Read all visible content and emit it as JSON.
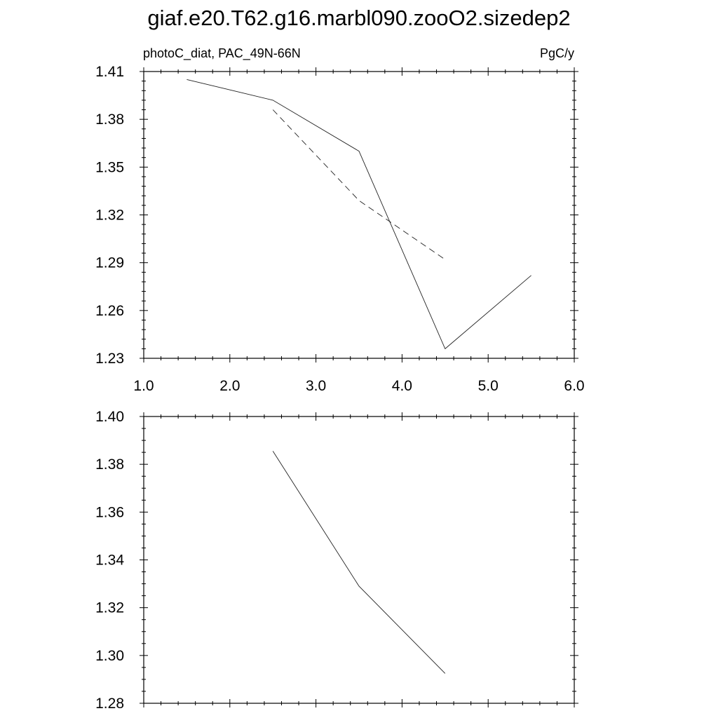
{
  "title": "giaf.e20.T62.g16.marbl090.zooO2.sizedep2",
  "chart_data": [
    {
      "type": "line",
      "left_label": "photoC_diat, PAC_49N-66N",
      "right_label": "PgC/y",
      "xlim": [
        1.0,
        6.0
      ],
      "ylim": [
        1.23,
        1.41
      ],
      "x_ticks": [
        "1.0",
        "2.0",
        "3.0",
        "4.0",
        "5.0",
        "6.0"
      ],
      "y_ticks": [
        "1.23",
        "1.26",
        "1.29",
        "1.32",
        "1.35",
        "1.38",
        "1.41"
      ],
      "grid": false,
      "series": [
        {
          "style": "solid",
          "x": [
            1.5,
            2.5,
            3.5,
            4.5,
            5.5
          ],
          "y": [
            1.405,
            1.392,
            1.36,
            1.236,
            1.282
          ]
        },
        {
          "style": "dashed",
          "x": [
            2.5,
            3.5,
            4.5
          ],
          "y": [
            1.386,
            1.329,
            1.292
          ]
        }
      ]
    },
    {
      "type": "line",
      "xlim": [
        1.0,
        6.0
      ],
      "ylim": [
        1.28,
        1.4
      ],
      "y_ticks": [
        "1.28",
        "1.30",
        "1.32",
        "1.34",
        "1.36",
        "1.38",
        "1.40"
      ],
      "grid": false,
      "series": [
        {
          "style": "solid",
          "x": [
            2.5,
            3.5,
            4.5
          ],
          "y": [
            1.3855,
            1.329,
            1.2925
          ]
        }
      ]
    }
  ]
}
